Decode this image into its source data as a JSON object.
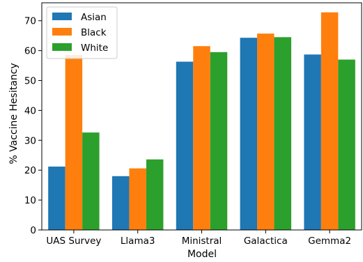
{
  "chart_data": {
    "type": "bar",
    "categories": [
      "UAS Survey",
      "Llama3",
      "Ministral",
      "Galactica",
      "Gemma2"
    ],
    "series": [
      {
        "name": "Asian",
        "color": "#1f77b4",
        "values": [
          21.2,
          18.0,
          56.3,
          64.3,
          58.7
        ]
      },
      {
        "name": "Black",
        "color": "#ff7f0e",
        "values": [
          58.5,
          20.6,
          61.5,
          65.7,
          72.8
        ]
      },
      {
        "name": "White",
        "color": "#2ca02c",
        "values": [
          32.6,
          23.6,
          59.5,
          64.5,
          57.0
        ]
      }
    ],
    "xlabel": "Model",
    "ylabel": "% Vaccine Hesitancy",
    "ylim": [
      0,
      76
    ],
    "yticks": [
      0,
      10,
      20,
      30,
      40,
      50,
      60,
      70
    ],
    "legend_position": "top-left",
    "grid": false
  }
}
